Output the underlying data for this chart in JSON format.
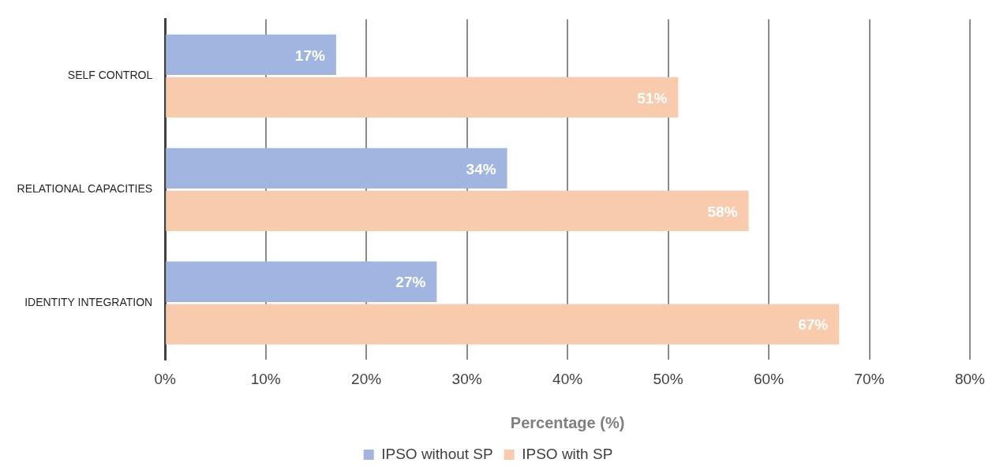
{
  "chart_data": {
    "type": "bar",
    "orientation": "horizontal",
    "xlabel": "Percentage (%)",
    "categories": [
      "SELF CONTROL",
      "RELATIONAL CAPACITIES",
      "IDENTITY INTEGRATION"
    ],
    "series": [
      {
        "name": "IPSO without SP",
        "color": "#a0b6e0",
        "values": [
          17,
          34,
          27
        ],
        "value_labels": [
          "17%",
          "34%",
          "27%"
        ]
      },
      {
        "name": "IPSO with SP",
        "color": "#f7cbac",
        "values": [
          51,
          58,
          67
        ],
        "value_labels": [
          "51%",
          "58%",
          "67%"
        ]
      }
    ],
    "xlim": [
      0,
      80
    ],
    "xticks": [
      {
        "value": 0,
        "label": "0%"
      },
      {
        "value": 10,
        "label": "10%"
      },
      {
        "value": 20,
        "label": "20%"
      },
      {
        "value": 30,
        "label": "30%"
      },
      {
        "value": 40,
        "label": "40%"
      },
      {
        "value": 50,
        "label": "50%"
      },
      {
        "value": 60,
        "label": "60%"
      },
      {
        "value": 70,
        "label": "70%"
      },
      {
        "value": 80,
        "label": "80%"
      }
    ],
    "grid": "x",
    "legend": "bottom"
  }
}
